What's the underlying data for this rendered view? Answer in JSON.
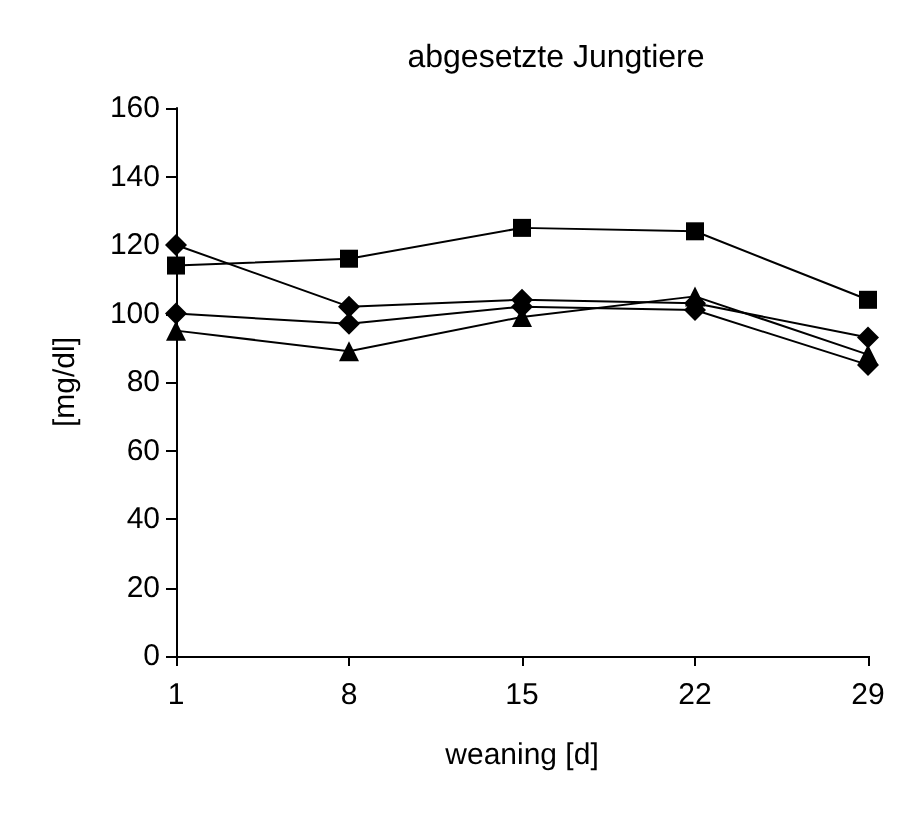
{
  "chart_data": {
    "type": "line",
    "title": "abgesetzte Jungtiere",
    "xlabel": "weaning [d]",
    "ylabel": "[mg/dl]",
    "x": [
      1,
      8,
      15,
      22,
      29
    ],
    "xlim": [
      1,
      29
    ],
    "xticks": [
      1,
      8,
      15,
      22,
      29
    ],
    "ylim": [
      0,
      160
    ],
    "yticks": [
      0,
      20,
      40,
      60,
      80,
      100,
      120,
      140,
      160
    ],
    "grid": false,
    "line_style": "solid",
    "series": [
      {
        "color": "#000000",
        "marker": "square",
        "values": [
          114,
          116,
          125,
          124,
          104
        ]
      },
      {
        "color": "#000000",
        "marker": "diamond",
        "values": [
          120,
          102,
          104,
          103,
          93
        ]
      },
      {
        "color": "#000000",
        "marker": "diamond",
        "values": [
          100,
          97,
          102,
          101,
          85
        ]
      },
      {
        "color": "#000000",
        "marker": "triangle",
        "values": [
          95,
          89,
          99,
          105,
          88
        ]
      }
    ]
  }
}
